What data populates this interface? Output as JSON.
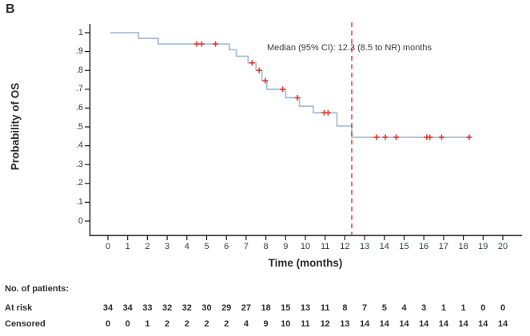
{
  "panel_label": "B",
  "annotation": "Median (95% CI): 12.3 (8.5 to NR) months",
  "chart_data": {
    "type": "line",
    "subtype": "kaplan_meier_step_curve",
    "title": "",
    "xlabel": "Time (months)",
    "ylabel": "Probability of OS",
    "xlim": [
      0,
      20
    ],
    "ylim": [
      0,
      1
    ],
    "grid": false,
    "xticks": [
      0,
      1,
      2,
      3,
      4,
      5,
      6,
      7,
      8,
      9,
      10,
      11,
      12,
      13,
      14,
      15,
      16,
      17,
      18,
      19,
      20
    ],
    "ytick_values": [
      1,
      0.9,
      0.8,
      0.7,
      0.6,
      0.5,
      0.4,
      0.3,
      0.2,
      0.1,
      0
    ],
    "ytick_labels": [
      "1",
      ".9",
      ".8",
      ".7",
      ".6",
      ".5",
      ".4",
      ".3",
      ".2",
      ".1",
      "0"
    ],
    "median_line_x": 12.35,
    "curve_start_x": 0.12,
    "curve_end_x": 18.35,
    "steps": [
      [
        0.12,
        1.0
      ],
      [
        1.55,
        0.97
      ],
      [
        2.55,
        0.94
      ],
      [
        6.15,
        0.91
      ],
      [
        6.5,
        0.875
      ],
      [
        7.1,
        0.84
      ],
      [
        7.5,
        0.8
      ],
      [
        7.8,
        0.745
      ],
      [
        8.05,
        0.7
      ],
      [
        9.0,
        0.655
      ],
      [
        9.7,
        0.61
      ],
      [
        10.4,
        0.575
      ],
      [
        11.6,
        0.505
      ],
      [
        12.35,
        0.445
      ]
    ],
    "censor_marks": [
      [
        4.5,
        0.94
      ],
      [
        4.75,
        0.94
      ],
      [
        5.45,
        0.94
      ],
      [
        7.3,
        0.84
      ],
      [
        7.66,
        0.8
      ],
      [
        7.97,
        0.745
      ],
      [
        8.85,
        0.7
      ],
      [
        9.6,
        0.655
      ],
      [
        10.95,
        0.575
      ],
      [
        11.15,
        0.575
      ],
      [
        13.6,
        0.445
      ],
      [
        14.05,
        0.445
      ],
      [
        14.6,
        0.445
      ],
      [
        16.15,
        0.445
      ],
      [
        16.3,
        0.445
      ],
      [
        16.9,
        0.445
      ],
      [
        18.3,
        0.445
      ]
    ],
    "colors": {
      "curve": "#a9c0d8",
      "censor": "#e9392c",
      "median_line": "#e9392c",
      "axis": "#1c1c1c",
      "tick_text": "#353c46",
      "label_text": "#2b2b33"
    }
  },
  "risk_table": {
    "title": "No. of patients:",
    "rows": [
      {
        "label": "At risk",
        "values": [
          34,
          34,
          33,
          32,
          32,
          30,
          29,
          27,
          18,
          15,
          13,
          11,
          8,
          7,
          5,
          4,
          3,
          1,
          1,
          0,
          0
        ]
      },
      {
        "label": "Censored",
        "values": [
          0,
          0,
          1,
          2,
          2,
          2,
          2,
          4,
          9,
          10,
          11,
          12,
          13,
          14,
          14,
          14,
          14,
          14,
          14,
          14,
          14
        ]
      }
    ]
  }
}
